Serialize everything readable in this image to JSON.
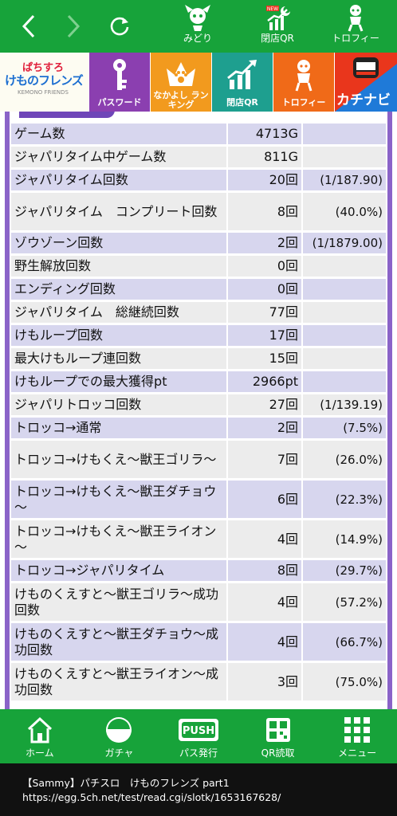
{
  "topbar": {
    "items": [
      {
        "label": "みどり",
        "icon": "character-icon"
      },
      {
        "label": "閉店QR",
        "icon": "closing-qr-icon",
        "badge": "NEW"
      },
      {
        "label": "トロフィー",
        "icon": "trophy-character-icon"
      }
    ]
  },
  "banner": {
    "logo": {
      "top": "ぱちすろ",
      "main": "けものフレンズ",
      "sub": "KEMONO FRIENDS"
    },
    "items": [
      {
        "label": "パスワード",
        "icon": "key-icon"
      },
      {
        "label": "なかよし ランキング",
        "icon": "crown-paw-icon"
      },
      {
        "label": "閉店QR",
        "icon": "chart-qr-icon"
      },
      {
        "label": "トロフィー",
        "icon": "trophy-character-icon"
      },
      {
        "label": "カチナビ",
        "icon": "kachinavi-logo"
      }
    ]
  },
  "stats": {
    "rows": [
      {
        "label": "ゲーム数",
        "value": "4713G",
        "pct": ""
      },
      {
        "label": "ジャパリタイム中ゲーム数",
        "value": "811G",
        "pct": ""
      },
      {
        "label": "ジャパリタイム回数",
        "value": "20回",
        "pct": "(1/187.90)"
      },
      {
        "label": "ジャパリタイム　コンプリート回数",
        "value": "8回",
        "pct": "(40.0%)"
      },
      {
        "label": "ゾウゾーン回数",
        "value": "2回",
        "pct": "(1/1879.00)"
      },
      {
        "label": "野生解放回数",
        "value": "0回",
        "pct": ""
      },
      {
        "label": "エンディング回数",
        "value": "0回",
        "pct": ""
      },
      {
        "label": "ジャパリタイム　総継続回数",
        "value": "77回",
        "pct": ""
      },
      {
        "label": "けもループ回数",
        "value": "17回",
        "pct": ""
      },
      {
        "label": "最大けもループ連回数",
        "value": "15回",
        "pct": ""
      },
      {
        "label": "けもループでの最大獲得pt",
        "value": "2966pt",
        "pct": ""
      },
      {
        "label": "ジャパリトロッコ回数",
        "value": "27回",
        "pct": "(1/139.19)"
      },
      {
        "label": "トロッコ→通常",
        "value": "2回",
        "pct": "(7.5%)"
      },
      {
        "label": "トロッコ→けもくえ～獣王ゴリラ～",
        "value": "7回",
        "pct": "(26.0%)"
      },
      {
        "label": "トロッコ→けもくえ～獣王ダチョウ～",
        "value": "6回",
        "pct": "(22.3%)"
      },
      {
        "label": "トロッコ→けもくえ～獣王ライオン～",
        "value": "4回",
        "pct": "(14.9%)"
      },
      {
        "label": "トロッコ→ジャパリタイム",
        "value": "8回",
        "pct": "(29.7%)"
      },
      {
        "label": "けものくえすと～獣王ゴリラ～成功回数",
        "value": "4回",
        "pct": "(57.2%)"
      },
      {
        "label": "けものくえすと～獣王ダチョウ～成功回数",
        "value": "4回",
        "pct": "(66.7%)"
      },
      {
        "label": "けものくえすと～獣王ライオン～成功回数",
        "value": "3回",
        "pct": "(75.0%)"
      }
    ]
  },
  "bottomnav": {
    "items": [
      {
        "label": "ホーム",
        "icon": "home-icon"
      },
      {
        "label": "ガチャ",
        "icon": "gacha-icon"
      },
      {
        "label": "パス発行",
        "icon": "push-pass-icon",
        "badge": "PUSH"
      },
      {
        "label": "QR読取",
        "icon": "qr-scan-icon"
      },
      {
        "label": "メニュー",
        "icon": "menu-grid-icon"
      }
    ]
  },
  "caption": {
    "line1": "【Sammy】パチスロ　けものフレンズ part1",
    "line2": "https://egg.5ch.net/test/read.cgi/slotk/1653167628/"
  },
  "colors": {
    "green": "#17a33a",
    "purple": "#8a63c8",
    "row_primary": "#d7d6ee",
    "row_alt": "#ececec"
  }
}
